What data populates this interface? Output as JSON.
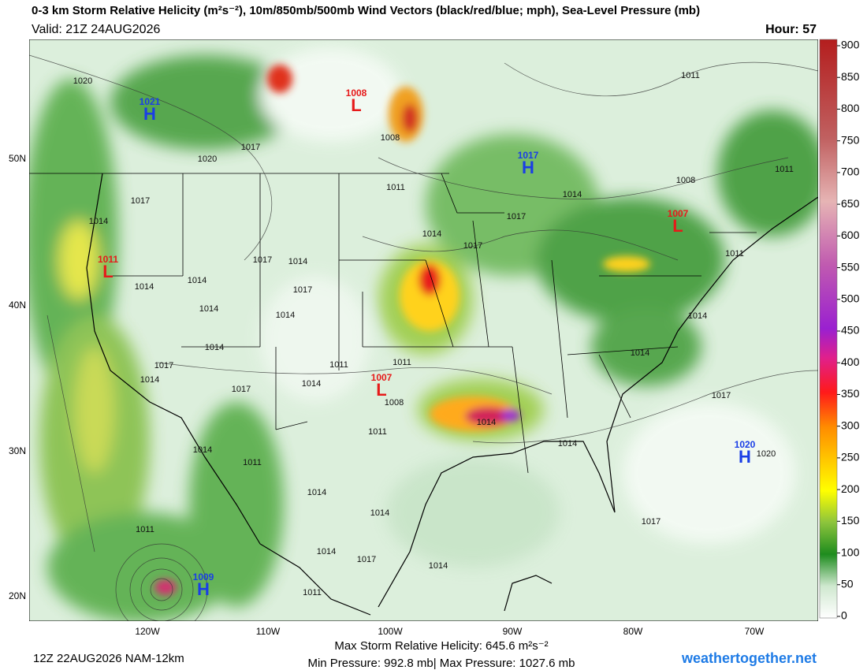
{
  "header": {
    "title": "0-3 km Storm Relative Helicity (m²s⁻²), 10m/850mb/500mb Wind Vectors (black/red/blue; mph), Sea-Level Pressure (mb)",
    "valid": "Valid: 21Z 24AUG2026",
    "hour": "Hour: 57"
  },
  "latitude_labels": [
    "50N",
    "40N",
    "30N",
    "20N"
  ],
  "longitude_labels": [
    "120W",
    "110W",
    "100W",
    "90W",
    "80W",
    "70W"
  ],
  "colorbar": {
    "range": [
      0,
      900
    ],
    "ticks": [
      0,
      50,
      100,
      150,
      200,
      250,
      300,
      350,
      400,
      450,
      500,
      550,
      600,
      650,
      700,
      750,
      800,
      850,
      900
    ]
  },
  "pressure_centers": [
    {
      "letter": "H",
      "value": 1021
    },
    {
      "letter": "L",
      "value": 1008
    },
    {
      "letter": "H",
      "value": 1017
    },
    {
      "letter": "L",
      "value": 1007
    },
    {
      "letter": "L",
      "value": 1011
    },
    {
      "letter": "L",
      "value": 1007
    },
    {
      "letter": "H",
      "value": 1020
    },
    {
      "letter": "H",
      "value": 1009
    }
  ],
  "isobar_labels": [
    1020,
    1017,
    1020,
    1017,
    1014,
    1011,
    1014,
    1017,
    1017,
    1014,
    1008,
    1011,
    1011,
    1008,
    1017,
    1014,
    1014,
    1014,
    1017,
    1014,
    1014,
    1014,
    1011,
    1011,
    1014,
    1017,
    1014,
    1017,
    1008,
    1011,
    1014,
    1014,
    1011,
    1014,
    1014,
    1017,
    1020,
    1014,
    1011,
    1014,
    1014,
    1017,
    1011,
    1014,
    1017,
    1014,
    1011
  ],
  "footer": {
    "run": "12Z 22AUG2026 NAM-12km",
    "max_helicity": "Max Storm Relative Helicity: 645.6 m²s⁻²",
    "pressure_range": "Min Pressure: 992.8 mb| Max Pressure: 1027.6 mb",
    "site": "weathertogether.net"
  }
}
